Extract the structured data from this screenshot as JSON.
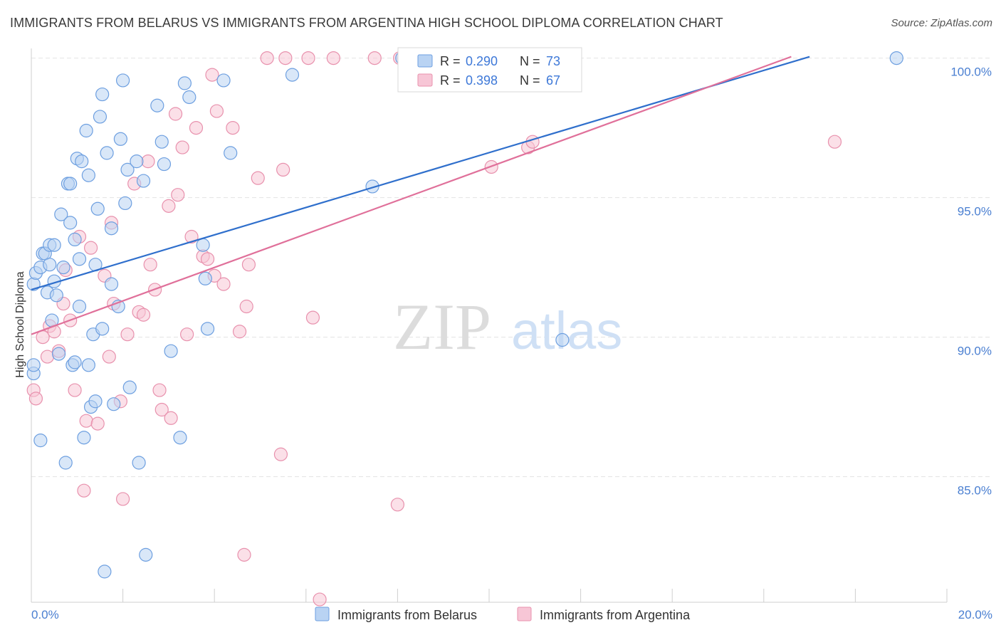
{
  "title": "IMMIGRANTS FROM BELARUS VS IMMIGRANTS FROM ARGENTINA HIGH SCHOOL DIPLOMA CORRELATION CHART",
  "source": "Source: ZipAtlas.com",
  "watermark": {
    "zip": "ZIP",
    "atlas": "atlas"
  },
  "colors": {
    "belarus_fill": "#b9d3f3",
    "belarus_stroke": "#6d9fe0",
    "belarus_line": "#2f6fcc",
    "argentina_fill": "#f7c6d6",
    "argentina_stroke": "#e891ad",
    "argentina_line": "#e0709a",
    "tick_label": "#4a7fd1",
    "grid": "#e3e3e3"
  },
  "legend": {
    "belarus": {
      "r_label": "R =",
      "r_value": "0.290",
      "n_label": "N =",
      "n_value": "73"
    },
    "argentina": {
      "r_label": "R =",
      "r_value": "0.398",
      "n_label": "N =",
      "n_value": "67"
    }
  },
  "chart_data": {
    "type": "scatter",
    "title": "IMMIGRANTS FROM BELARUS VS IMMIGRANTS FROM ARGENTINA HIGH SCHOOL DIPLOMA CORRELATION CHART",
    "xlabel": "",
    "ylabel": "High School Diploma",
    "xlim": [
      0,
      20
    ],
    "ylim": [
      80.5,
      100.5
    ],
    "x_tick_labels": [
      "0.0%",
      "20.0%"
    ],
    "y_ticks": [
      85,
      90,
      95,
      100
    ],
    "y_tick_labels": [
      "85.0%",
      "90.0%",
      "95.0%",
      "100.0%"
    ],
    "series": [
      {
        "name": "Immigrants from Belarus",
        "trend": {
          "x": [
            0,
            17.0
          ],
          "y": [
            91.7,
            100.05
          ]
        },
        "points": [
          [
            0.05,
            91.9
          ],
          [
            0.05,
            88.7
          ],
          [
            0.05,
            89.0
          ],
          [
            0.1,
            92.3
          ],
          [
            0.2,
            86.3
          ],
          [
            0.2,
            92.5
          ],
          [
            0.25,
            93.0
          ],
          [
            0.3,
            93.0
          ],
          [
            0.35,
            91.6
          ],
          [
            0.4,
            93.3
          ],
          [
            0.4,
            92.6
          ],
          [
            0.45,
            90.6
          ],
          [
            0.5,
            92.0
          ],
          [
            0.5,
            93.3
          ],
          [
            0.55,
            91.5
          ],
          [
            0.6,
            89.4
          ],
          [
            0.65,
            94.4
          ],
          [
            0.7,
            92.5
          ],
          [
            0.75,
            85.5
          ],
          [
            0.8,
            95.5
          ],
          [
            0.85,
            95.5
          ],
          [
            0.85,
            94.1
          ],
          [
            0.9,
            89.0
          ],
          [
            0.95,
            93.5
          ],
          [
            0.95,
            89.1
          ],
          [
            1.0,
            96.4
          ],
          [
            1.05,
            92.8
          ],
          [
            1.05,
            91.1
          ],
          [
            1.1,
            96.3
          ],
          [
            1.15,
            86.4
          ],
          [
            1.2,
            97.4
          ],
          [
            1.25,
            95.8
          ],
          [
            1.25,
            89.0
          ],
          [
            1.3,
            87.5
          ],
          [
            1.35,
            90.1
          ],
          [
            1.4,
            92.6
          ],
          [
            1.4,
            87.7
          ],
          [
            1.45,
            94.6
          ],
          [
            1.5,
            97.9
          ],
          [
            1.55,
            98.7
          ],
          [
            1.55,
            90.3
          ],
          [
            1.6,
            81.6
          ],
          [
            1.65,
            96.6
          ],
          [
            1.75,
            93.9
          ],
          [
            1.75,
            91.9
          ],
          [
            1.8,
            87.6
          ],
          [
            1.9,
            91.1
          ],
          [
            1.95,
            97.1
          ],
          [
            2.0,
            99.2
          ],
          [
            2.05,
            94.8
          ],
          [
            2.1,
            96.0
          ],
          [
            2.15,
            88.2
          ],
          [
            2.3,
            96.3
          ],
          [
            2.35,
            85.5
          ],
          [
            2.45,
            95.6
          ],
          [
            2.5,
            82.2
          ],
          [
            2.75,
            98.3
          ],
          [
            2.85,
            97.0
          ],
          [
            2.9,
            96.2
          ],
          [
            3.05,
            89.5
          ],
          [
            3.25,
            86.4
          ],
          [
            3.35,
            99.1
          ],
          [
            3.45,
            98.6
          ],
          [
            3.75,
            93.3
          ],
          [
            3.8,
            92.1
          ],
          [
            3.85,
            90.3
          ],
          [
            4.2,
            99.2
          ],
          [
            4.35,
            96.6
          ],
          [
            5.7,
            99.4
          ],
          [
            7.45,
            95.4
          ],
          [
            8.1,
            100.0
          ],
          [
            11.6,
            89.9
          ],
          [
            18.9,
            100.0
          ]
        ]
      },
      {
        "name": "Immigrants from Argentina",
        "trend": {
          "x": [
            0,
            16.6
          ],
          "y": [
            90.1,
            100.05
          ]
        },
        "points": [
          [
            0.05,
            88.1
          ],
          [
            0.1,
            87.8
          ],
          [
            0.25,
            90.0
          ],
          [
            0.35,
            89.3
          ],
          [
            0.4,
            90.4
          ],
          [
            0.5,
            90.2
          ],
          [
            0.6,
            89.5
          ],
          [
            0.7,
            91.2
          ],
          [
            0.75,
            92.4
          ],
          [
            0.85,
            90.6
          ],
          [
            0.95,
            88.1
          ],
          [
            1.05,
            93.6
          ],
          [
            1.15,
            84.5
          ],
          [
            1.2,
            87.0
          ],
          [
            1.3,
            93.2
          ],
          [
            1.45,
            86.9
          ],
          [
            1.6,
            92.2
          ],
          [
            1.7,
            89.3
          ],
          [
            1.75,
            94.1
          ],
          [
            1.8,
            91.2
          ],
          [
            1.95,
            87.7
          ],
          [
            2.0,
            84.2
          ],
          [
            2.1,
            90.1
          ],
          [
            2.25,
            95.5
          ],
          [
            2.35,
            90.9
          ],
          [
            2.45,
            90.8
          ],
          [
            2.55,
            96.3
          ],
          [
            2.6,
            92.6
          ],
          [
            2.7,
            91.7
          ],
          [
            2.8,
            88.1
          ],
          [
            2.85,
            87.4
          ],
          [
            3.0,
            94.7
          ],
          [
            3.05,
            87.1
          ],
          [
            3.15,
            98.0
          ],
          [
            3.2,
            95.1
          ],
          [
            3.3,
            96.8
          ],
          [
            3.4,
            90.1
          ],
          [
            3.5,
            93.6
          ],
          [
            3.6,
            97.5
          ],
          [
            3.75,
            92.9
          ],
          [
            3.85,
            92.8
          ],
          [
            3.95,
            99.4
          ],
          [
            4.0,
            92.2
          ],
          [
            4.05,
            98.1
          ],
          [
            4.2,
            91.9
          ],
          [
            4.4,
            97.5
          ],
          [
            4.55,
            90.2
          ],
          [
            4.65,
            82.2
          ],
          [
            4.7,
            91.1
          ],
          [
            4.75,
            92.6
          ],
          [
            4.95,
            95.7
          ],
          [
            5.15,
            100.0
          ],
          [
            5.45,
            85.8
          ],
          [
            5.5,
            96.0
          ],
          [
            5.55,
            100.0
          ],
          [
            6.05,
            100.0
          ],
          [
            6.15,
            90.7
          ],
          [
            6.3,
            80.6
          ],
          [
            6.6,
            100.0
          ],
          [
            7.5,
            100.0
          ],
          [
            8.0,
            84.0
          ],
          [
            8.05,
            100.0
          ],
          [
            10.05,
            96.1
          ],
          [
            10.85,
            96.8
          ],
          [
            10.95,
            97.0
          ],
          [
            11.55,
            100.0
          ],
          [
            17.55,
            97.0
          ]
        ]
      }
    ]
  }
}
